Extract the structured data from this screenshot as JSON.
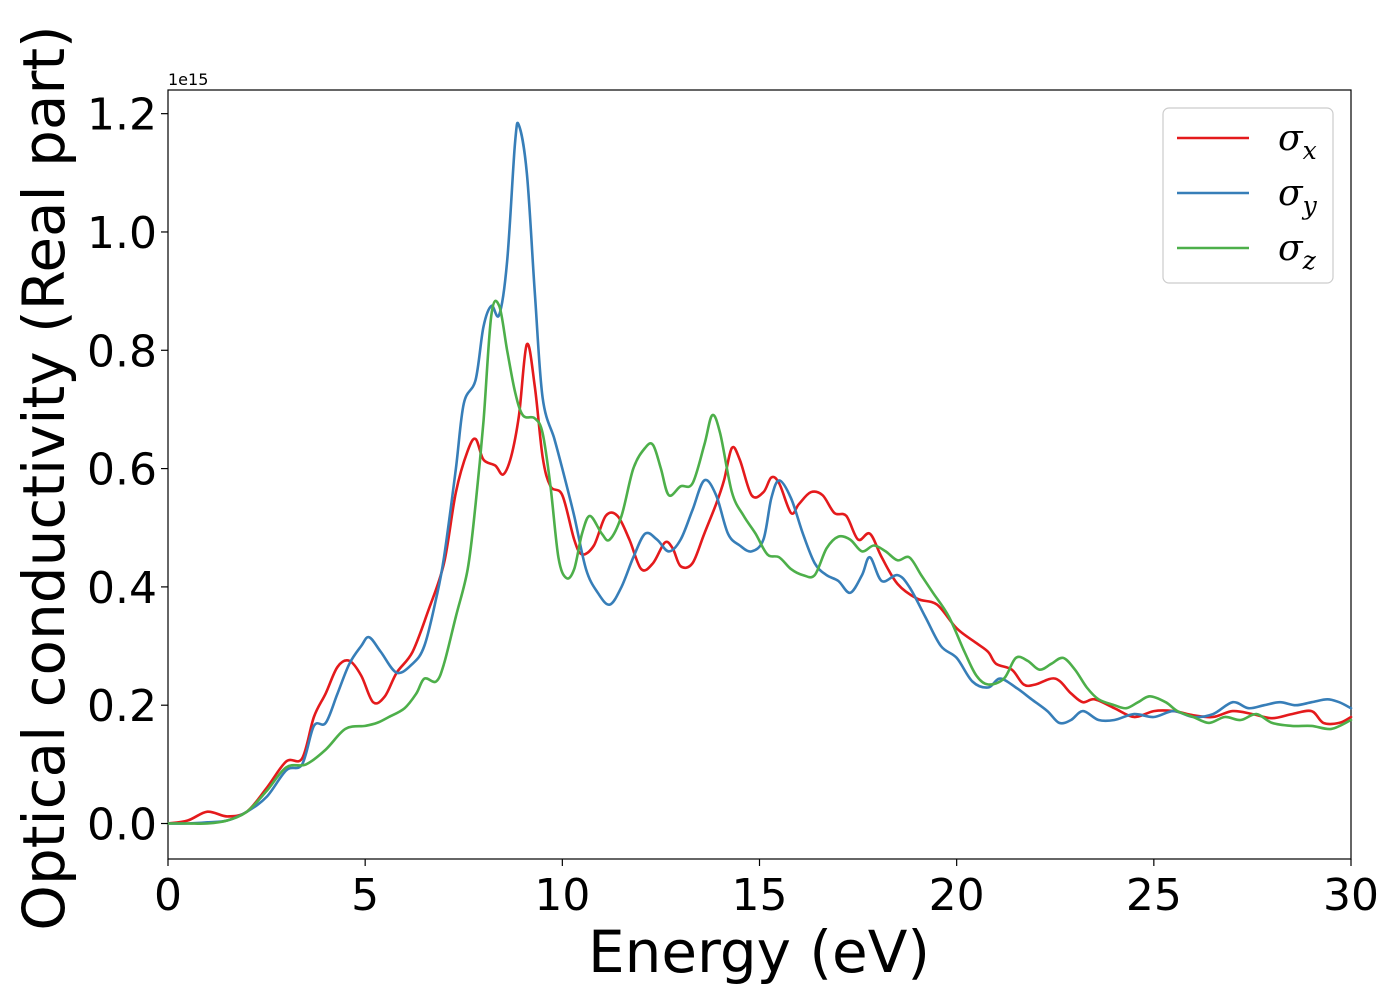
{
  "chart_data": {
    "type": "line",
    "xlabel": "Energy (eV)",
    "ylabel": "Optical conductivity (Real part)",
    "y_offset_label": "1e15",
    "xlim": [
      0,
      30
    ],
    "ylim": [
      -0.06,
      1.24
    ],
    "y_scale": 1000000000000000.0,
    "xticks": [
      0,
      5,
      10,
      15,
      20,
      25,
      30
    ],
    "xtick_labels": [
      "0",
      "5",
      "10",
      "15",
      "20",
      "25",
      "30"
    ],
    "yticks": [
      0.0,
      0.2,
      0.4,
      0.6,
      0.8,
      1.0,
      1.2
    ],
    "ytick_labels": [
      "0.0",
      "0.2",
      "0.4",
      "0.6",
      "0.8",
      "1.0",
      "1.2"
    ],
    "grid": false,
    "legend_position": "top-right",
    "series": [
      {
        "name": "σx",
        "symbol": "σ",
        "subscript": "x",
        "color": "#e41a1c",
        "points": [
          [
            0,
            0
          ],
          [
            0.5,
            0.005
          ],
          [
            1.0,
            0.02
          ],
          [
            1.5,
            0.012
          ],
          [
            2.0,
            0.02
          ],
          [
            2.5,
            0.06
          ],
          [
            3.0,
            0.105
          ],
          [
            3.4,
            0.11
          ],
          [
            3.7,
            0.18
          ],
          [
            4.0,
            0.22
          ],
          [
            4.3,
            0.265
          ],
          [
            4.6,
            0.275
          ],
          [
            4.9,
            0.25
          ],
          [
            5.2,
            0.205
          ],
          [
            5.5,
            0.215
          ],
          [
            5.8,
            0.255
          ],
          [
            6.2,
            0.29
          ],
          [
            6.6,
            0.36
          ],
          [
            7.0,
            0.44
          ],
          [
            7.3,
            0.56
          ],
          [
            7.6,
            0.63
          ],
          [
            7.8,
            0.65
          ],
          [
            8.0,
            0.615
          ],
          [
            8.3,
            0.605
          ],
          [
            8.5,
            0.59
          ],
          [
            8.7,
            0.62
          ],
          [
            8.9,
            0.69
          ],
          [
            9.1,
            0.81
          ],
          [
            9.3,
            0.74
          ],
          [
            9.5,
            0.62
          ],
          [
            9.7,
            0.57
          ],
          [
            10.0,
            0.555
          ],
          [
            10.3,
            0.48
          ],
          [
            10.5,
            0.455
          ],
          [
            10.8,
            0.47
          ],
          [
            11.1,
            0.52
          ],
          [
            11.4,
            0.52
          ],
          [
            11.7,
            0.48
          ],
          [
            12.0,
            0.43
          ],
          [
            12.3,
            0.44
          ],
          [
            12.6,
            0.475
          ],
          [
            12.8,
            0.465
          ],
          [
            13.0,
            0.435
          ],
          [
            13.3,
            0.44
          ],
          [
            13.6,
            0.49
          ],
          [
            13.9,
            0.54
          ],
          [
            14.1,
            0.58
          ],
          [
            14.3,
            0.635
          ],
          [
            14.5,
            0.615
          ],
          [
            14.8,
            0.555
          ],
          [
            15.1,
            0.56
          ],
          [
            15.3,
            0.585
          ],
          [
            15.5,
            0.575
          ],
          [
            15.8,
            0.525
          ],
          [
            16.0,
            0.54
          ],
          [
            16.3,
            0.56
          ],
          [
            16.6,
            0.555
          ],
          [
            16.9,
            0.525
          ],
          [
            17.2,
            0.52
          ],
          [
            17.5,
            0.48
          ],
          [
            17.8,
            0.49
          ],
          [
            18.1,
            0.45
          ],
          [
            18.5,
            0.405
          ],
          [
            19.0,
            0.38
          ],
          [
            19.5,
            0.37
          ],
          [
            20.0,
            0.33
          ],
          [
            20.5,
            0.305
          ],
          [
            20.8,
            0.29
          ],
          [
            21.0,
            0.27
          ],
          [
            21.4,
            0.26
          ],
          [
            21.7,
            0.235
          ],
          [
            22.0,
            0.235
          ],
          [
            22.5,
            0.245
          ],
          [
            22.9,
            0.22
          ],
          [
            23.2,
            0.205
          ],
          [
            23.5,
            0.21
          ],
          [
            24.0,
            0.195
          ],
          [
            24.5,
            0.18
          ],
          [
            25.0,
            0.19
          ],
          [
            25.5,
            0.19
          ],
          [
            26.0,
            0.183
          ],
          [
            26.5,
            0.18
          ],
          [
            27.0,
            0.19
          ],
          [
            27.5,
            0.185
          ],
          [
            28.0,
            0.178
          ],
          [
            28.5,
            0.185
          ],
          [
            29.0,
            0.19
          ],
          [
            29.3,
            0.17
          ],
          [
            29.7,
            0.17
          ],
          [
            30.0,
            0.18
          ]
        ]
      },
      {
        "name": "σy",
        "symbol": "σ",
        "subscript": "y",
        "color": "#377eb8",
        "points": [
          [
            0,
            0
          ],
          [
            0.5,
            0
          ],
          [
            1.0,
            0.002
          ],
          [
            1.5,
            0.005
          ],
          [
            2.0,
            0.02
          ],
          [
            2.5,
            0.045
          ],
          [
            3.0,
            0.09
          ],
          [
            3.4,
            0.1
          ],
          [
            3.7,
            0.165
          ],
          [
            4.0,
            0.17
          ],
          [
            4.3,
            0.22
          ],
          [
            4.6,
            0.27
          ],
          [
            4.9,
            0.3
          ],
          [
            5.1,
            0.315
          ],
          [
            5.4,
            0.29
          ],
          [
            5.8,
            0.255
          ],
          [
            6.2,
            0.27
          ],
          [
            6.5,
            0.3
          ],
          [
            6.8,
            0.38
          ],
          [
            7.0,
            0.45
          ],
          [
            7.3,
            0.6
          ],
          [
            7.5,
            0.71
          ],
          [
            7.8,
            0.75
          ],
          [
            8.0,
            0.84
          ],
          [
            8.2,
            0.875
          ],
          [
            8.4,
            0.86
          ],
          [
            8.6,
            0.95
          ],
          [
            8.8,
            1.15
          ],
          [
            8.9,
            1.18
          ],
          [
            9.1,
            1.1
          ],
          [
            9.3,
            0.9
          ],
          [
            9.5,
            0.72
          ],
          [
            9.8,
            0.65
          ],
          [
            10.0,
            0.6
          ],
          [
            10.3,
            0.52
          ],
          [
            10.6,
            0.43
          ],
          [
            10.9,
            0.39
          ],
          [
            11.2,
            0.37
          ],
          [
            11.5,
            0.4
          ],
          [
            11.8,
            0.45
          ],
          [
            12.1,
            0.49
          ],
          [
            12.4,
            0.48
          ],
          [
            12.7,
            0.46
          ],
          [
            13.0,
            0.48
          ],
          [
            13.3,
            0.53
          ],
          [
            13.6,
            0.58
          ],
          [
            13.9,
            0.555
          ],
          [
            14.2,
            0.49
          ],
          [
            14.5,
            0.47
          ],
          [
            14.8,
            0.46
          ],
          [
            15.1,
            0.48
          ],
          [
            15.3,
            0.55
          ],
          [
            15.5,
            0.58
          ],
          [
            15.8,
            0.55
          ],
          [
            16.1,
            0.49
          ],
          [
            16.4,
            0.44
          ],
          [
            16.7,
            0.42
          ],
          [
            17.0,
            0.41
          ],
          [
            17.3,
            0.39
          ],
          [
            17.6,
            0.42
          ],
          [
            17.8,
            0.45
          ],
          [
            18.1,
            0.41
          ],
          [
            18.5,
            0.42
          ],
          [
            18.8,
            0.4
          ],
          [
            19.2,
            0.35
          ],
          [
            19.6,
            0.3
          ],
          [
            20.0,
            0.28
          ],
          [
            20.4,
            0.24
          ],
          [
            20.8,
            0.23
          ],
          [
            21.1,
            0.245
          ],
          [
            21.5,
            0.23
          ],
          [
            21.9,
            0.21
          ],
          [
            22.3,
            0.19
          ],
          [
            22.6,
            0.17
          ],
          [
            22.9,
            0.175
          ],
          [
            23.2,
            0.19
          ],
          [
            23.6,
            0.175
          ],
          [
            24.0,
            0.175
          ],
          [
            24.5,
            0.185
          ],
          [
            25.0,
            0.18
          ],
          [
            25.5,
            0.19
          ],
          [
            26.0,
            0.18
          ],
          [
            26.5,
            0.185
          ],
          [
            27.0,
            0.205
          ],
          [
            27.4,
            0.195
          ],
          [
            27.8,
            0.2
          ],
          [
            28.2,
            0.205
          ],
          [
            28.6,
            0.2
          ],
          [
            29.0,
            0.205
          ],
          [
            29.4,
            0.21
          ],
          [
            29.7,
            0.205
          ],
          [
            30.0,
            0.195
          ]
        ]
      },
      {
        "name": "σz",
        "symbol": "σ",
        "subscript": "z",
        "color": "#4daf4a",
        "points": [
          [
            0,
            0
          ],
          [
            0.5,
            0
          ],
          [
            1.0,
            0
          ],
          [
            1.5,
            0.005
          ],
          [
            2.0,
            0.02
          ],
          [
            2.5,
            0.055
          ],
          [
            3.0,
            0.095
          ],
          [
            3.5,
            0.1
          ],
          [
            4.0,
            0.125
          ],
          [
            4.5,
            0.16
          ],
          [
            5.0,
            0.165
          ],
          [
            5.3,
            0.17
          ],
          [
            5.6,
            0.18
          ],
          [
            6.0,
            0.195
          ],
          [
            6.3,
            0.22
          ],
          [
            6.5,
            0.245
          ],
          [
            6.8,
            0.24
          ],
          [
            7.0,
            0.27
          ],
          [
            7.3,
            0.35
          ],
          [
            7.6,
            0.43
          ],
          [
            7.8,
            0.54
          ],
          [
            8.0,
            0.68
          ],
          [
            8.2,
            0.86
          ],
          [
            8.4,
            0.875
          ],
          [
            8.6,
            0.8
          ],
          [
            8.8,
            0.73
          ],
          [
            9.0,
            0.69
          ],
          [
            9.3,
            0.685
          ],
          [
            9.5,
            0.66
          ],
          [
            9.7,
            0.57
          ],
          [
            9.9,
            0.45
          ],
          [
            10.1,
            0.415
          ],
          [
            10.3,
            0.43
          ],
          [
            10.5,
            0.49
          ],
          [
            10.7,
            0.52
          ],
          [
            11.0,
            0.49
          ],
          [
            11.2,
            0.48
          ],
          [
            11.5,
            0.52
          ],
          [
            11.8,
            0.6
          ],
          [
            12.1,
            0.635
          ],
          [
            12.3,
            0.64
          ],
          [
            12.5,
            0.6
          ],
          [
            12.7,
            0.555
          ],
          [
            13.0,
            0.57
          ],
          [
            13.3,
            0.575
          ],
          [
            13.6,
            0.64
          ],
          [
            13.8,
            0.69
          ],
          [
            14.0,
            0.66
          ],
          [
            14.3,
            0.56
          ],
          [
            14.6,
            0.52
          ],
          [
            14.9,
            0.49
          ],
          [
            15.2,
            0.455
          ],
          [
            15.5,
            0.45
          ],
          [
            15.8,
            0.43
          ],
          [
            16.1,
            0.42
          ],
          [
            16.4,
            0.42
          ],
          [
            16.7,
            0.465
          ],
          [
            17.0,
            0.485
          ],
          [
            17.3,
            0.48
          ],
          [
            17.6,
            0.46
          ],
          [
            17.9,
            0.47
          ],
          [
            18.2,
            0.46
          ],
          [
            18.5,
            0.445
          ],
          [
            18.8,
            0.45
          ],
          [
            19.1,
            0.42
          ],
          [
            19.4,
            0.39
          ],
          [
            19.8,
            0.35
          ],
          [
            20.2,
            0.29
          ],
          [
            20.5,
            0.25
          ],
          [
            20.8,
            0.235
          ],
          [
            21.2,
            0.245
          ],
          [
            21.5,
            0.28
          ],
          [
            21.8,
            0.275
          ],
          [
            22.1,
            0.26
          ],
          [
            22.4,
            0.27
          ],
          [
            22.7,
            0.28
          ],
          [
            23.0,
            0.26
          ],
          [
            23.3,
            0.23
          ],
          [
            23.6,
            0.21
          ],
          [
            24.0,
            0.2
          ],
          [
            24.3,
            0.195
          ],
          [
            24.6,
            0.205
          ],
          [
            24.9,
            0.215
          ],
          [
            25.3,
            0.205
          ],
          [
            25.6,
            0.19
          ],
          [
            26.0,
            0.18
          ],
          [
            26.4,
            0.17
          ],
          [
            26.8,
            0.18
          ],
          [
            27.2,
            0.175
          ],
          [
            27.6,
            0.185
          ],
          [
            28.0,
            0.17
          ],
          [
            28.5,
            0.165
          ],
          [
            29.0,
            0.165
          ],
          [
            29.5,
            0.16
          ],
          [
            30.0,
            0.175
          ]
        ]
      }
    ]
  }
}
